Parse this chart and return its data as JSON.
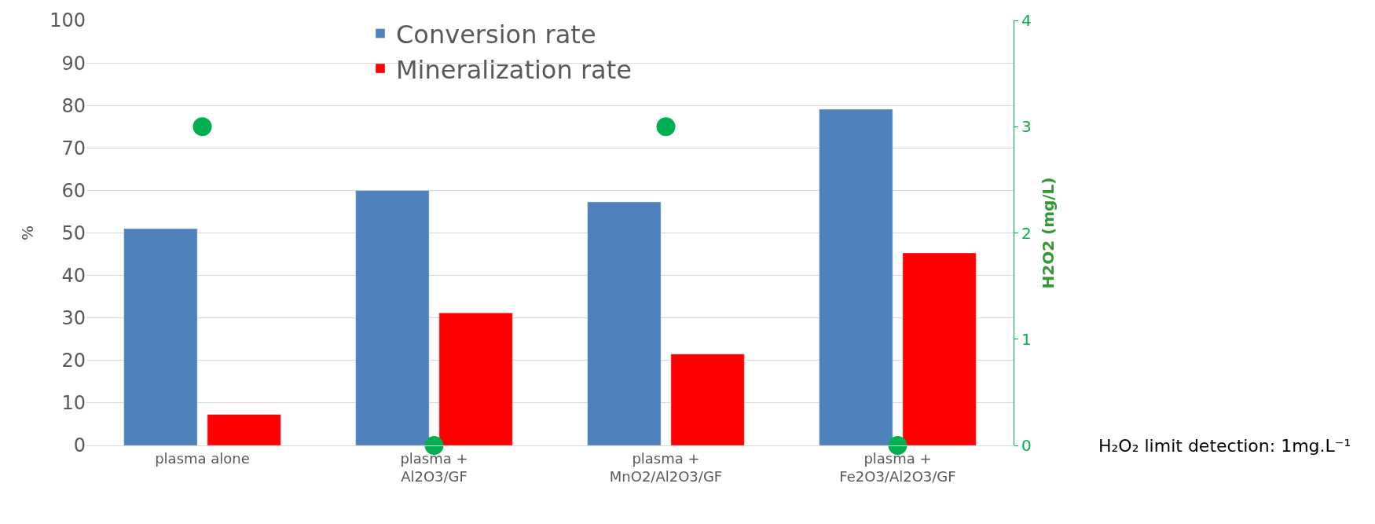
{
  "chart_data": {
    "type": "bar",
    "categories": [
      "plasma alone",
      "plasma +\nAl2O3/GF",
      "plasma +\nMnO2/Al2O3/GF",
      "plasma +\nFe2O3/Al2O3/GF"
    ],
    "series": [
      {
        "name": "Conversion rate",
        "color": "#4f81bd",
        "values": [
          51,
          60,
          57.3,
          79.1
        ]
      },
      {
        "name": "Mineralization rate",
        "color": "#ff0000",
        "values": [
          7.3,
          31.2,
          21.5,
          45.3
        ]
      },
      {
        "type": "scatter",
        "axis": "y2",
        "color": "#00b050",
        "marker": "circle",
        "values": [
          3,
          0,
          3,
          0
        ]
      }
    ],
    "ylabel": "%",
    "y2label": "H2O2 (mg/L)",
    "ylim": [
      0,
      100
    ],
    "yticks": [
      0,
      10,
      20,
      30,
      40,
      50,
      60,
      70,
      80,
      90,
      100
    ],
    "y2lim": [
      0,
      4
    ],
    "y2ticks": [
      0,
      1,
      2,
      3,
      4
    ],
    "grid": "y",
    "legend": "top",
    "annotations": [
      "H₂O₂ limit detection: 1mg.L⁻¹"
    ]
  }
}
